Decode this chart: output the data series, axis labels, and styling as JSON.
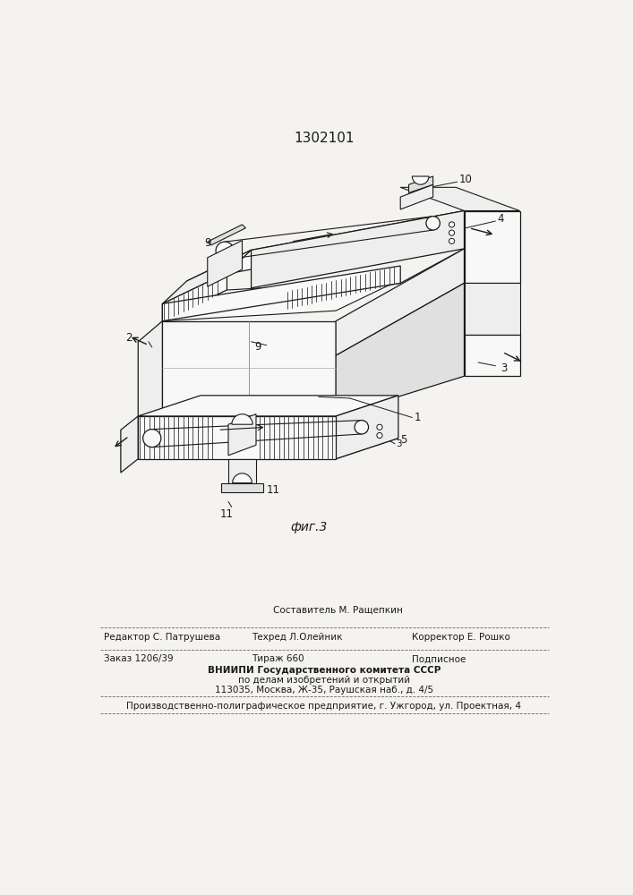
{
  "patent_number": "1302101",
  "figure_label": "фиг.3",
  "bg_color": "#f5f3ef",
  "line_color": "#1a1a1a",
  "footer": {
    "row0_center": "Составитель М. Ращепкин",
    "row1_col1": "Редактор С. Патрушева",
    "row1_col2": "Техред Л.Олейник",
    "row1_col3": "Корректор Е. Рошко",
    "row2_col1": "Заказ 1206/39",
    "row2_col2": "Тираж 660",
    "row2_col3": "Подписное",
    "row3": "ВНИИПИ Государственного комитета СССР",
    "row4": "по делам изобретений и открытий",
    "row5": "113035, Москва, Ж-35, Раушская наб., д. 4/5",
    "row6": "Производственно-полиграфическое предприятие, г. Ужгород, ул. Проектная, 4"
  }
}
